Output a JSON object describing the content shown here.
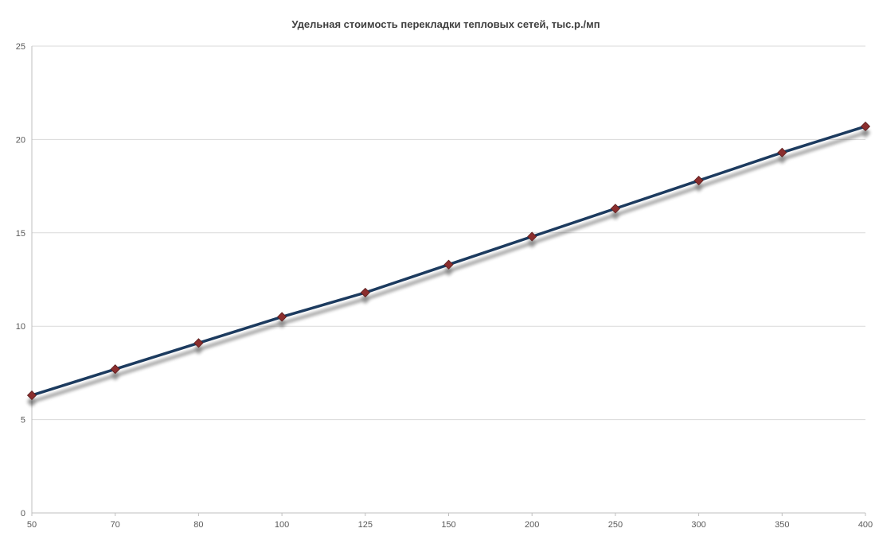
{
  "chart_data": {
    "type": "line",
    "title": "Удельная стоимость перекладки тепловых сетей, тыс.р./мп",
    "xlabel": "",
    "ylabel": "",
    "categories": [
      "50",
      "70",
      "80",
      "100",
      "125",
      "150",
      "200",
      "250",
      "300",
      "350",
      "400"
    ],
    "series": [
      {
        "values": [
          6.3,
          7.7,
          9.1,
          10.5,
          11.8,
          13.3,
          14.8,
          16.3,
          17.8,
          19.3,
          20.7
        ],
        "color": "#1F3A5F",
        "marker_color": "#8B2E2E"
      }
    ],
    "ylim": [
      0,
      25
    ],
    "yticks": [
      "0",
      "5",
      "10",
      "15",
      "20",
      "25"
    ],
    "grid": true,
    "legend": "none"
  }
}
